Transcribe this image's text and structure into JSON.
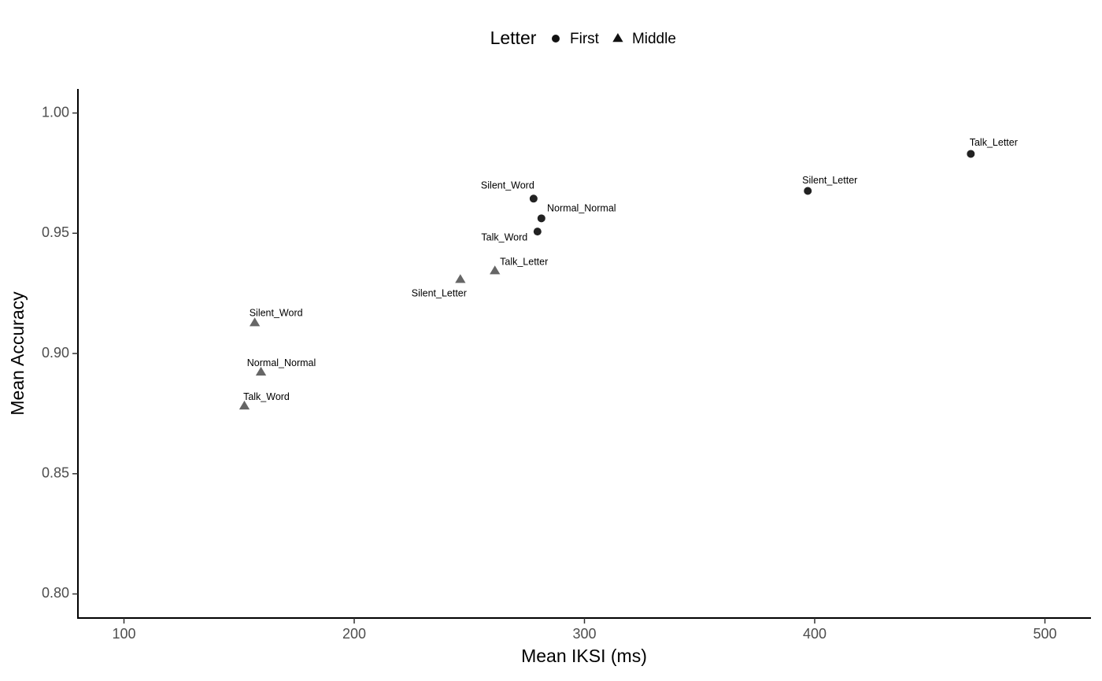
{
  "chart_data": {
    "type": "scatter",
    "xlabel": "Mean IKSI (ms)",
    "ylabel": "Mean Accuracy",
    "legend_title": "Letter",
    "legend": "top",
    "xlim": [
      80,
      520
    ],
    "xticks": [
      100,
      200,
      300,
      400,
      500
    ],
    "ylim": [
      0.79,
      1.01
    ],
    "yticks": [
      {
        "value": 0.8,
        "label": "0.80"
      },
      0.85,
      {
        "value": 0.9,
        "label": "0.90"
      },
      0.95,
      {
        "value": 1.0,
        "label": "1.00"
      }
    ],
    "series": [
      {
        "name": "First",
        "color": "#222222",
        "marker": "circle",
        "x": [
          467.8,
          397.0,
          277.9,
          281.3,
          279.6
        ],
        "values": [
          0.983,
          0.9676,
          0.9644,
          0.9562,
          0.9507
        ],
        "labels": [
          "Talk_Letter",
          "Silent_Letter",
          "Silent_Word",
          "Normal_Normal",
          "Talk_Word"
        ]
      },
      {
        "name": "Middle",
        "color": "#666666",
        "marker": "triangle",
        "x": [
          261.1,
          246.1,
          156.8,
          159.5,
          152.3
        ],
        "values": [
          0.9343,
          0.9307,
          0.9127,
          0.8922,
          0.8781
        ],
        "labels": [
          "Talk_Letter",
          "Silent_Letter",
          "Silent_Word",
          "Normal_Normal",
          "Talk_Word"
        ]
      }
    ]
  }
}
